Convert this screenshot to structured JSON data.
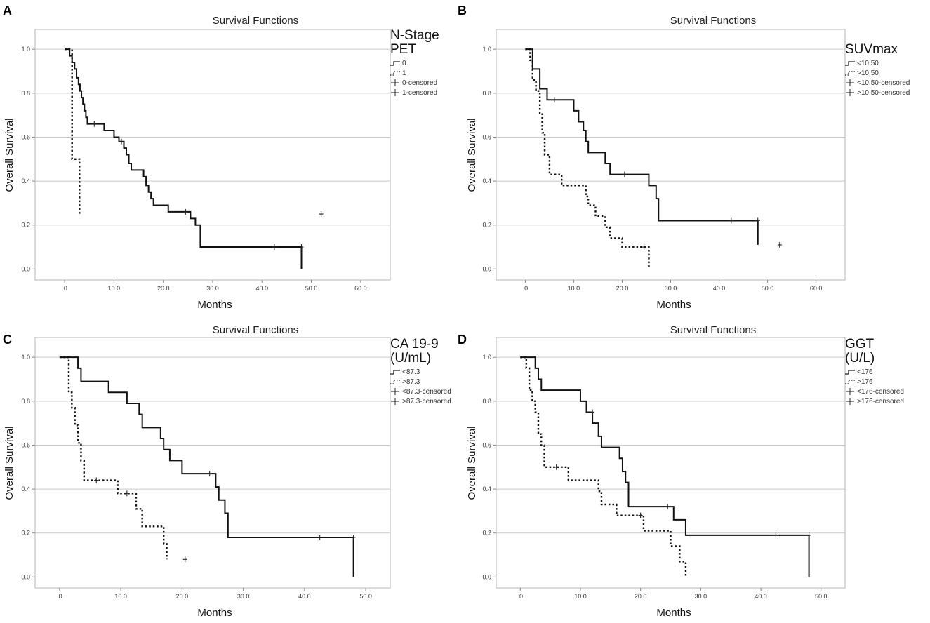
{
  "chart_data": [
    {
      "panel": "A",
      "type": "line",
      "title": "Survival Functions",
      "xlabel": "Months",
      "ylabel": "Overall Survival",
      "xlim": [
        -6,
        66
      ],
      "ylim": [
        -0.05,
        1.09
      ],
      "xticks": [
        ".0",
        "10.0",
        "20.0",
        "30.0",
        "40.0",
        "50.0",
        "60.0"
      ],
      "xtick_values": [
        0,
        10,
        20,
        30,
        40,
        50,
        60
      ],
      "yticks": [
        "0.0",
        "0.2",
        "0.4",
        "0.6",
        "0.8",
        "1.0"
      ],
      "ytick_values": [
        0,
        0.2,
        0.4,
        0.6,
        0.8,
        1.0
      ],
      "grid": true,
      "legend_title": [
        "N-Stage",
        "PET"
      ],
      "legend_entries": [
        "0",
        "1",
        "0-censored",
        "1-censored"
      ],
      "series": [
        {
          "name": "0",
          "style": "solid",
          "x": [
            0,
            1,
            1.5,
            2,
            2.4,
            2.8,
            3.1,
            3.4,
            3.7,
            4.0,
            4.3,
            4.6,
            5.0,
            8.0,
            10.0,
            11.0,
            12.0,
            12.5,
            13.0,
            13.5,
            14.0,
            16.0,
            16.5,
            17.0,
            17.5,
            18.0,
            20.0,
            21.0,
            25.5,
            26.5,
            27.5,
            48.0
          ],
          "y": [
            1.0,
            0.97,
            0.94,
            0.91,
            0.87,
            0.84,
            0.81,
            0.78,
            0.75,
            0.72,
            0.69,
            0.66,
            0.66,
            0.63,
            0.6,
            0.58,
            0.55,
            0.52,
            0.48,
            0.45,
            0.45,
            0.42,
            0.38,
            0.35,
            0.32,
            0.29,
            0.29,
            0.26,
            0.23,
            0.2,
            0.1,
            0.0
          ],
          "censored": [
            {
              "x": 6,
              "y": 0.66
            },
            {
              "x": 11.5,
              "y": 0.58
            },
            {
              "x": 24.5,
              "y": 0.26
            },
            {
              "x": 42.5,
              "y": 0.1
            },
            {
              "x": 48,
              "y": 0.1
            }
          ]
        },
        {
          "name": "1",
          "style": "dotted",
          "x": [
            0,
            1.5,
            3.0
          ],
          "y": [
            1.0,
            0.5,
            0.25
          ],
          "censored": [
            {
              "x": 52,
              "y": 0.25
            }
          ]
        }
      ]
    },
    {
      "panel": "B",
      "type": "line",
      "title": "Survival Functions",
      "xlabel": "Months",
      "ylabel": "Overall Survival",
      "xlim": [
        -6,
        66
      ],
      "ylim": [
        -0.05,
        1.09
      ],
      "xticks": [
        ".0",
        "10.0",
        "20.0",
        "30.0",
        "40.0",
        "50.0",
        "60.0"
      ],
      "xtick_values": [
        0,
        10,
        20,
        30,
        40,
        50,
        60
      ],
      "yticks": [
        "0.0",
        "0.2",
        "0.4",
        "0.6",
        "0.8",
        "1.0"
      ],
      "ytick_values": [
        0,
        0.2,
        0.4,
        0.6,
        0.8,
        1.0
      ],
      "grid": true,
      "legend_title": [
        "SUVmax"
      ],
      "legend_entries": [
        "<10.50",
        ">10.50",
        "<10.50-censored",
        ">10.50-censored"
      ],
      "series": [
        {
          "name": "<10.50",
          "style": "solid",
          "x": [
            0,
            1.5,
            3.0,
            4.5,
            10.0,
            11.0,
            12.0,
            12.5,
            13.0,
            16.5,
            17.5,
            25.5,
            27.0,
            27.5,
            48.0
          ],
          "y": [
            1.0,
            0.91,
            0.82,
            0.77,
            0.72,
            0.67,
            0.63,
            0.58,
            0.53,
            0.48,
            0.43,
            0.38,
            0.32,
            0.22,
            0.11
          ],
          "censored": [
            {
              "x": 6,
              "y": 0.77
            },
            {
              "x": 20.5,
              "y": 0.43
            },
            {
              "x": 42.5,
              "y": 0.22
            },
            {
              "x": 48,
              "y": 0.22
            },
            {
              "x": 52.5,
              "y": 0.11
            }
          ]
        },
        {
          "name": ">10.50",
          "style": "dotted",
          "x": [
            0,
            1.0,
            1.5,
            2.2,
            3.0,
            3.5,
            4.0,
            5.0,
            7.5,
            12.5,
            13.0,
            14.5,
            16.5,
            17.5,
            20.0,
            25.5
          ],
          "y": [
            1.0,
            0.95,
            0.86,
            0.81,
            0.71,
            0.62,
            0.52,
            0.43,
            0.38,
            0.33,
            0.29,
            0.24,
            0.19,
            0.14,
            0.1,
            0.0
          ],
          "censored": [
            {
              "x": 24.5,
              "y": 0.1
            }
          ]
        }
      ]
    },
    {
      "panel": "C",
      "type": "line",
      "title": "Survival Functions",
      "xlabel": "Months",
      "ylabel": "Overall Survival",
      "xlim": [
        -4,
        54
      ],
      "ylim": [
        -0.05,
        1.09
      ],
      "xticks": [
        ".0",
        "10.0",
        "20.0",
        "30.0",
        "40.0",
        "50.0"
      ],
      "xtick_values": [
        0,
        10,
        20,
        30,
        40,
        50
      ],
      "yticks": [
        "0.0",
        "0.2",
        "0.4",
        "0.6",
        "0.8",
        "1.0"
      ],
      "ytick_values": [
        0,
        0.2,
        0.4,
        0.6,
        0.8,
        1.0
      ],
      "grid": true,
      "legend_title": [
        "CA 19-9",
        "(U/mL)"
      ],
      "legend_entries": [
        "<87.3",
        ">87.3",
        "<87.3-censored",
        ">87.3-censored"
      ],
      "series": [
        {
          "name": "<87.3",
          "style": "solid",
          "x": [
            0,
            3.0,
            3.5,
            8.0,
            11.0,
            13.0,
            13.5,
            16.5,
            17.0,
            18.0,
            20.0,
            25.5,
            26.0,
            27.0,
            27.5,
            48.0
          ],
          "y": [
            1.0,
            0.95,
            0.89,
            0.84,
            0.79,
            0.74,
            0.68,
            0.63,
            0.58,
            0.53,
            0.47,
            0.41,
            0.35,
            0.29,
            0.18,
            0.0
          ],
          "censored": [
            {
              "x": 24.5,
              "y": 0.47
            },
            {
              "x": 42.5,
              "y": 0.18
            },
            {
              "x": 48,
              "y": 0.18
            }
          ]
        },
        {
          "name": ">87.3",
          "style": "dotted",
          "x": [
            0,
            1.5,
            2.0,
            2.5,
            3.0,
            3.5,
            4.0,
            9.5,
            12.5,
            13.5,
            17.0,
            17.5
          ],
          "y": [
            1.0,
            0.84,
            0.77,
            0.69,
            0.61,
            0.53,
            0.44,
            0.38,
            0.31,
            0.23,
            0.15,
            0.08
          ],
          "censored": [
            {
              "x": 6.0,
              "y": 0.44
            },
            {
              "x": 11.0,
              "y": 0.38
            },
            {
              "x": 20.5,
              "y": 0.08
            }
          ]
        }
      ]
    },
    {
      "panel": "D",
      "type": "line",
      "title": "Survival Functions",
      "xlabel": "Months",
      "ylabel": "Overall Survival",
      "xlim": [
        -4,
        54
      ],
      "ylim": [
        -0.05,
        1.09
      ],
      "xticks": [
        ".0",
        "10.0",
        "20.0",
        "30.0",
        "40.0",
        "50.0"
      ],
      "xtick_values": [
        0,
        10,
        20,
        30,
        40,
        50
      ],
      "yticks": [
        "0.0",
        "0.2",
        "0.4",
        "0.6",
        "0.8",
        "1.0"
      ],
      "ytick_values": [
        0,
        0.2,
        0.4,
        0.6,
        0.8,
        1.0
      ],
      "grid": true,
      "legend_title": [
        "GGT",
        "(U/L)"
      ],
      "legend_entries": [
        "<176",
        ">176",
        "<176-censored",
        ">176-censored"
      ],
      "series": [
        {
          "name": "<176",
          "style": "solid",
          "x": [
            0,
            2.5,
            3.0,
            3.5,
            4.0,
            10.0,
            11.0,
            12.0,
            13.0,
            13.5,
            14.0,
            16.5,
            17.0,
            17.5,
            18.0,
            25.5,
            27.5,
            48.0
          ],
          "y": [
            1.0,
            0.95,
            0.9,
            0.85,
            0.85,
            0.8,
            0.75,
            0.7,
            0.64,
            0.59,
            0.59,
            0.54,
            0.48,
            0.43,
            0.32,
            0.26,
            0.19,
            0.0
          ],
          "censored": [
            {
              "x": 12.0,
              "y": 0.75
            },
            {
              "x": 24.5,
              "y": 0.32
            },
            {
              "x": 42.5,
              "y": 0.19
            },
            {
              "x": 48,
              "y": 0.19
            }
          ]
        },
        {
          "name": ">176",
          "style": "dotted",
          "x": [
            0,
            1.0,
            1.5,
            2.0,
            2.5,
            3.0,
            3.5,
            4.0,
            8.0,
            13.0,
            13.5,
            16.0,
            19.5,
            20.5,
            25.0,
            26.5,
            27.5
          ],
          "y": [
            1.0,
            0.95,
            0.85,
            0.8,
            0.75,
            0.65,
            0.6,
            0.5,
            0.44,
            0.39,
            0.33,
            0.28,
            0.28,
            0.21,
            0.14,
            0.07,
            0.0
          ],
          "censored": [
            {
              "x": 6.0,
              "y": 0.5
            },
            {
              "x": 20.0,
              "y": 0.28
            }
          ]
        }
      ]
    }
  ]
}
